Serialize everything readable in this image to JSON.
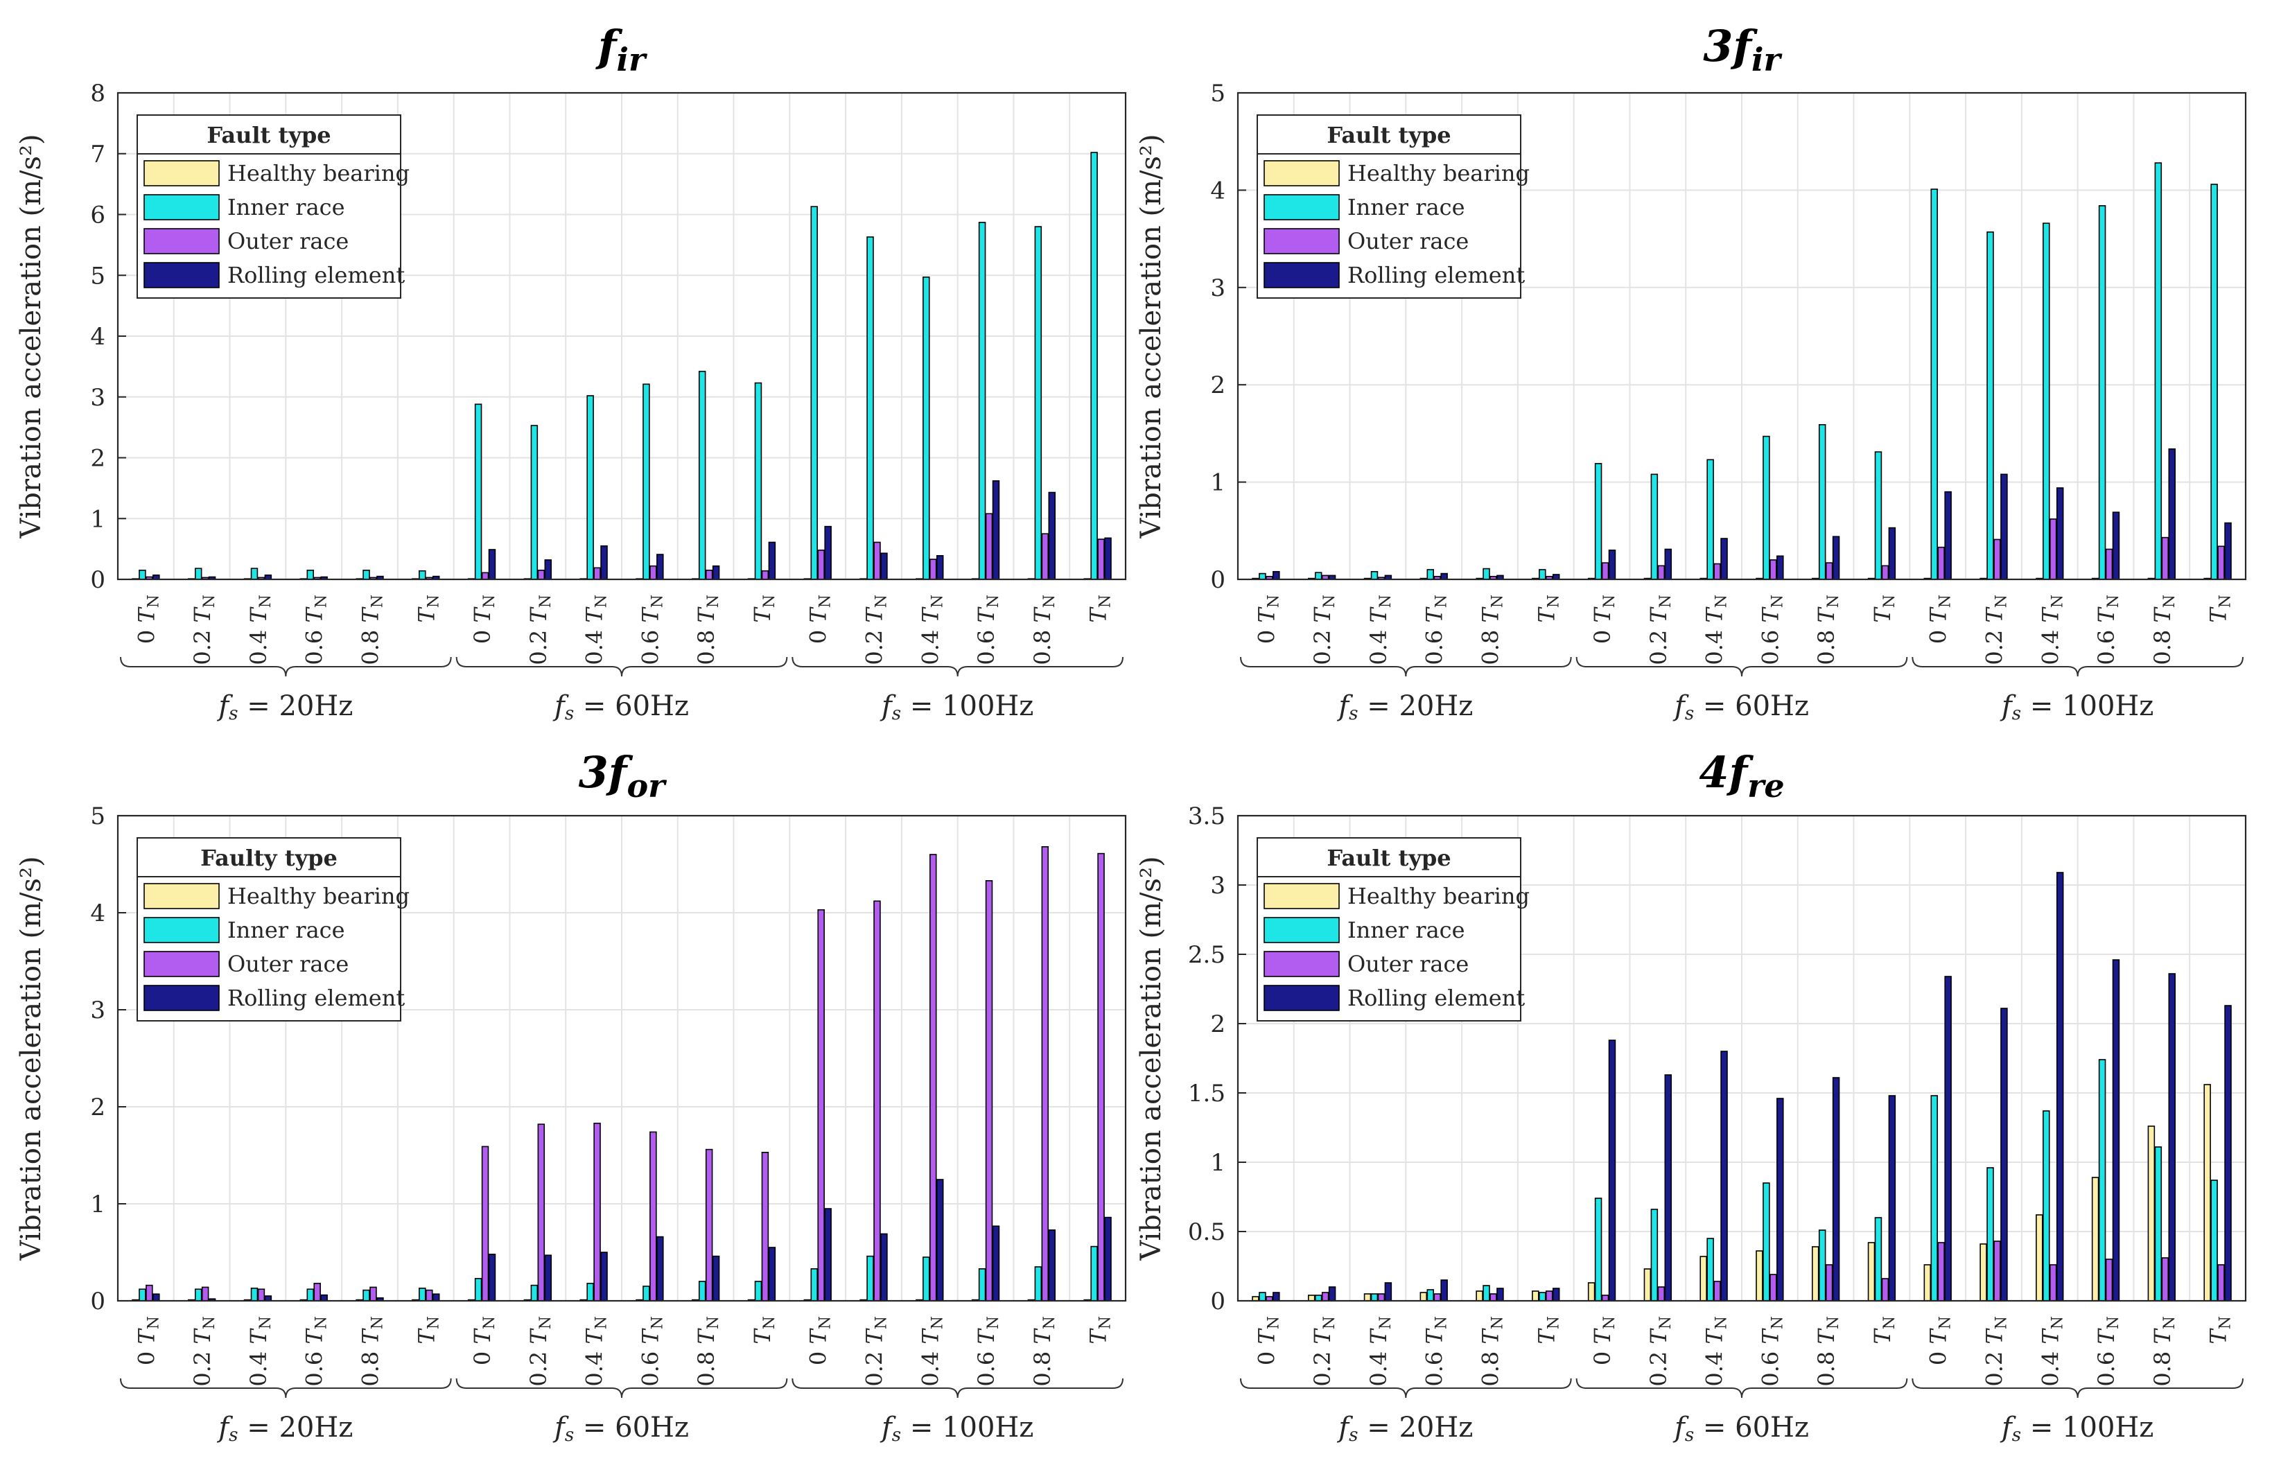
{
  "chart_data": [
    {
      "type": "bar",
      "title": {
        "main": "f",
        "sub": "ir",
        "prefix": ""
      },
      "ylabel": "Vibration acceleration (m/s²)",
      "ylim": [
        0,
        8
      ],
      "yticks": [
        "0",
        "1",
        "2",
        "3",
        "4",
        "5",
        "6",
        "7",
        "8"
      ],
      "ytick_values": [
        0,
        1,
        2,
        3,
        4,
        5,
        6,
        7,
        8
      ],
      "categories": [
        "0 TN",
        "0.2 TN",
        "0.4 TN",
        "0.6 TN",
        "0.8 TN",
        "TN",
        "0 TN",
        "0.2 TN",
        "0.4 TN",
        "0.6 TN",
        "0.8 TN",
        "TN",
        "0 TN",
        "0.2 TN",
        "0.4 TN",
        "0.6 TN",
        "0.8 TN",
        "TN"
      ],
      "groups": [
        "fs = 20Hz",
        "fs = 60Hz",
        "fs = 100Hz"
      ],
      "legend": {
        "title": "Fault type",
        "position": "top-left"
      },
      "series": [
        {
          "name": "Healthy bearing",
          "color": "#fcefa8",
          "values": [
            0.01,
            0.01,
            0.01,
            0.01,
            0.01,
            0.01,
            0.01,
            0.01,
            0.01,
            0.01,
            0.01,
            0.01,
            0.01,
            0.01,
            0.01,
            0.01,
            0.01,
            0.01
          ]
        },
        {
          "name": "Inner race",
          "color": "#1ee6e6",
          "values": [
            0.15,
            0.18,
            0.18,
            0.15,
            0.15,
            0.14,
            2.88,
            2.53,
            3.02,
            3.21,
            3.42,
            3.23,
            6.13,
            5.63,
            4.97,
            5.87,
            5.8,
            7.02
          ]
        },
        {
          "name": "Outer race",
          "color": "#b25cf0",
          "values": [
            0.04,
            0.03,
            0.03,
            0.03,
            0.03,
            0.03,
            0.11,
            0.15,
            0.19,
            0.22,
            0.15,
            0.14,
            0.48,
            0.61,
            0.33,
            1.08,
            0.75,
            0.66
          ]
        },
        {
          "name": "Rolling element",
          "color": "#1a1a8c",
          "values": [
            0.07,
            0.04,
            0.07,
            0.04,
            0.05,
            0.05,
            0.49,
            0.32,
            0.55,
            0.41,
            0.22,
            0.61,
            0.87,
            0.43,
            0.39,
            1.62,
            1.43,
            0.68
          ]
        }
      ]
    },
    {
      "type": "bar",
      "title": {
        "main": "f",
        "sub": "ir",
        "prefix": "3"
      },
      "ylabel": "Vibration acceleration (m/s²)",
      "ylim": [
        0,
        5
      ],
      "yticks": [
        "0",
        "1",
        "2",
        "3",
        "4",
        "5"
      ],
      "ytick_values": [
        0,
        1,
        2,
        3,
        4,
        5
      ],
      "categories": [
        "0 TN",
        "0.2 TN",
        "0.4 TN",
        "0.6 TN",
        "0.8 TN",
        "TN",
        "0 TN",
        "0.2 TN",
        "0.4 TN",
        "0.6 TN",
        "0.8 TN",
        "TN",
        "0 TN",
        "0.2 TN",
        "0.4 TN",
        "0.6 TN",
        "0.8 TN",
        "TN"
      ],
      "groups": [
        "fs = 20Hz",
        "fs = 60Hz",
        "fs = 100Hz"
      ],
      "legend": {
        "title": "Fault type",
        "position": "top-left"
      },
      "series": [
        {
          "name": "Healthy bearing",
          "color": "#fcefa8",
          "values": [
            0.01,
            0.01,
            0.01,
            0.01,
            0.01,
            0.01,
            0.01,
            0.01,
            0.01,
            0.01,
            0.01,
            0.01,
            0.01,
            0.01,
            0.01,
            0.01,
            0.01,
            0.01
          ]
        },
        {
          "name": "Inner race",
          "color": "#1ee6e6",
          "values": [
            0.06,
            0.07,
            0.08,
            0.1,
            0.11,
            0.1,
            1.19,
            1.08,
            1.23,
            1.47,
            1.59,
            1.31,
            4.01,
            3.57,
            3.66,
            3.84,
            4.28,
            4.06
          ]
        },
        {
          "name": "Outer race",
          "color": "#b25cf0",
          "values": [
            0.03,
            0.04,
            0.02,
            0.03,
            0.03,
            0.03,
            0.17,
            0.14,
            0.16,
            0.2,
            0.17,
            0.14,
            0.33,
            0.41,
            0.62,
            0.31,
            0.43,
            0.34
          ]
        },
        {
          "name": "Rolling element",
          "color": "#1a1a8c",
          "values": [
            0.08,
            0.04,
            0.04,
            0.06,
            0.04,
            0.05,
            0.3,
            0.31,
            0.42,
            0.24,
            0.44,
            0.53,
            0.9,
            1.08,
            0.94,
            0.69,
            1.34,
            0.58
          ]
        }
      ]
    },
    {
      "type": "bar",
      "title": {
        "main": "f",
        "sub": "or",
        "prefix": "3"
      },
      "ylabel": "Vibration acceleration (m/s²)",
      "ylim": [
        0,
        5
      ],
      "yticks": [
        "0",
        "1",
        "2",
        "3",
        "4",
        "5"
      ],
      "ytick_values": [
        0,
        1,
        2,
        3,
        4,
        5
      ],
      "categories": [
        "0 TN",
        "0.2 TN",
        "0.4 TN",
        "0.6 TN",
        "0.8 TN",
        "TN",
        "0 TN",
        "0.2 TN",
        "0.4 TN",
        "0.6 TN",
        "0.8 TN",
        "TN",
        "0 TN",
        "0.2 TN",
        "0.4 TN",
        "0.6 TN",
        "0.8 TN",
        "TN"
      ],
      "groups": [
        "fs = 20Hz",
        "fs = 60Hz",
        "fs = 100Hz"
      ],
      "legend": {
        "title": "Faulty type",
        "position": "top-left"
      },
      "series": [
        {
          "name": "Healthy bearing",
          "color": "#fcefa8",
          "values": [
            0.01,
            0.01,
            0.01,
            0.01,
            0.01,
            0.01,
            0.01,
            0.01,
            0.01,
            0.01,
            0.01,
            0.01,
            0.01,
            0.01,
            0.01,
            0.01,
            0.01,
            0.01
          ]
        },
        {
          "name": "Inner race",
          "color": "#1ee6e6",
          "values": [
            0.12,
            0.12,
            0.13,
            0.12,
            0.11,
            0.13,
            0.23,
            0.16,
            0.18,
            0.15,
            0.2,
            0.2,
            0.33,
            0.46,
            0.45,
            0.33,
            0.35,
            0.56
          ]
        },
        {
          "name": "Outer race",
          "color": "#b25cf0",
          "values": [
            0.16,
            0.14,
            0.12,
            0.18,
            0.14,
            0.11,
            1.59,
            1.82,
            1.83,
            1.74,
            1.56,
            1.53,
            4.03,
            4.12,
            4.6,
            4.33,
            4.68,
            4.61
          ]
        },
        {
          "name": "Rolling element",
          "color": "#1a1a8c",
          "values": [
            0.07,
            0.02,
            0.05,
            0.06,
            0.03,
            0.07,
            0.48,
            0.47,
            0.5,
            0.66,
            0.46,
            0.55,
            0.95,
            0.69,
            1.25,
            0.77,
            0.73,
            0.86
          ]
        }
      ]
    },
    {
      "type": "bar",
      "title": {
        "main": "f",
        "sub": "re",
        "prefix": "4"
      },
      "ylabel": "Vibration acceleration (m/s²)",
      "ylim": [
        0,
        3.5
      ],
      "yticks": [
        "0",
        "0.5",
        "1",
        "1.5",
        "2",
        "2.5",
        "3",
        "3.5"
      ],
      "ytick_values": [
        0,
        0.5,
        1,
        1.5,
        2,
        2.5,
        3,
        3.5
      ],
      "categories": [
        "0 TN",
        "0.2 TN",
        "0.4 TN",
        "0.6 TN",
        "0.8 TN",
        "TN",
        "0 TN",
        "0.2 TN",
        "0.4 TN",
        "0.6 TN",
        "0.8 TN",
        "TN",
        "0 TN",
        "0.2 TN",
        "0.4 TN",
        "0.6 TN",
        "0.8 TN",
        "TN"
      ],
      "groups": [
        "fs = 20Hz",
        "fs = 60Hz",
        "fs = 100Hz"
      ],
      "legend": {
        "title": "Fault type",
        "position": "top-left"
      },
      "series": [
        {
          "name": "Healthy bearing",
          "color": "#fcefa8",
          "values": [
            0.03,
            0.04,
            0.05,
            0.06,
            0.07,
            0.07,
            0.13,
            0.23,
            0.32,
            0.36,
            0.39,
            0.42,
            0.26,
            0.41,
            0.62,
            0.89,
            1.26,
            1.56
          ]
        },
        {
          "name": "Inner race",
          "color": "#1ee6e6",
          "values": [
            0.06,
            0.04,
            0.05,
            0.08,
            0.11,
            0.06,
            0.74,
            0.66,
            0.45,
            0.85,
            0.51,
            0.6,
            1.48,
            0.96,
            1.37,
            1.74,
            1.11,
            0.87
          ]
        },
        {
          "name": "Outer race",
          "color": "#b25cf0",
          "values": [
            0.03,
            0.06,
            0.05,
            0.05,
            0.05,
            0.07,
            0.04,
            0.1,
            0.14,
            0.19,
            0.26,
            0.16,
            0.42,
            0.43,
            0.26,
            0.3,
            0.31,
            0.26
          ]
        },
        {
          "name": "Rolling element",
          "color": "#1a1a8c",
          "values": [
            0.06,
            0.1,
            0.13,
            0.15,
            0.09,
            0.09,
            1.88,
            1.63,
            1.8,
            1.46,
            1.61,
            1.48,
            2.34,
            2.11,
            3.09,
            2.46,
            2.36,
            2.13
          ]
        }
      ]
    }
  ]
}
